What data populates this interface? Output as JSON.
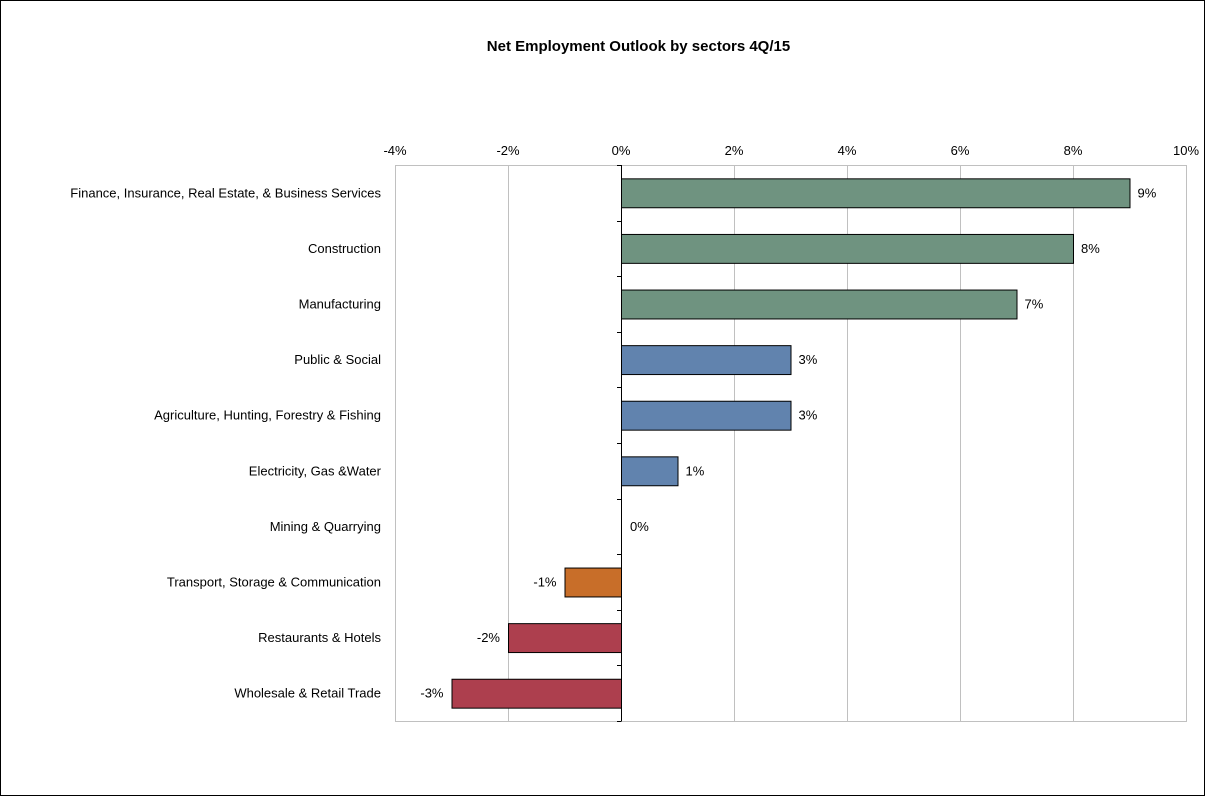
{
  "chart_data": {
    "type": "bar",
    "orientation": "horizontal",
    "title": "Net Employment Outlook by sectors 4Q/15",
    "xlabel": "",
    "ylabel": "",
    "xlim": [
      -4,
      10
    ],
    "x_ticks": [
      -4,
      -2,
      0,
      2,
      4,
      6,
      8,
      10
    ],
    "x_tick_labels": [
      "-4%",
      "-2%",
      "0%",
      "2%",
      "4%",
      "6%",
      "8%",
      "10%"
    ],
    "x_axis_position": "top",
    "grid": true,
    "legend": false,
    "categories": [
      "Finance, Insurance, Real Estate, & Business Services",
      "Construction",
      "Manufacturing",
      "Public & Social",
      "Agriculture, Hunting, Forestry & Fishing",
      "Electricity, Gas &Water",
      "Mining & Quarrying",
      "Transport, Storage & Communication",
      "Restaurants & Hotels",
      "Wholesale & Retail Trade"
    ],
    "values": [
      9,
      8,
      7,
      3,
      3,
      1,
      0,
      -1,
      -2,
      -3
    ],
    "data_labels": [
      "9%",
      "8%",
      "7%",
      "3%",
      "3%",
      "1%",
      "0%",
      "-1%",
      "-2%",
      "-3%"
    ],
    "bar_colors": [
      "#6f9380",
      "#6f9380",
      "#6f9380",
      "#6183ae",
      "#6183ae",
      "#6183ae",
      "#6183ae",
      "#c86e29",
      "#ad3f4e",
      "#ad3f4e"
    ],
    "gridline_color": "#c0c0c0"
  }
}
